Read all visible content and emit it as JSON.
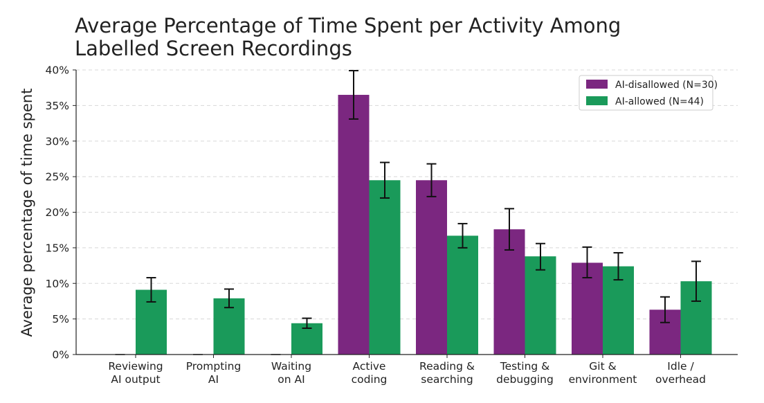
{
  "chart_data": {
    "type": "bar",
    "title": "Average Percentage of Time Spent per Activity Among Labelled Screen Recordings",
    "title_lines": [
      "Average Percentage of Time Spent per Activity Among",
      "Labelled Screen Recordings"
    ],
    "xlabel": "",
    "ylabel": "Average percentage of time spent",
    "categories": [
      [
        "Reviewing",
        "AI output"
      ],
      [
        "Prompting",
        "AI"
      ],
      [
        "Waiting",
        "on AI"
      ],
      [
        "Active",
        "coding"
      ],
      [
        "Reading &",
        "searching"
      ],
      [
        "Testing &",
        "debugging"
      ],
      [
        "Git &",
        "environment"
      ],
      [
        "Idle /",
        "overhead"
      ]
    ],
    "series": [
      {
        "name": "AI-disallowed (N=30)",
        "color": "#7b2780",
        "values": [
          0,
          0,
          0,
          36.5,
          24.5,
          17.6,
          12.9,
          6.3
        ],
        "error_low": [
          0,
          0,
          0,
          33.1,
          22.2,
          14.7,
          10.8,
          4.5
        ],
        "error_high": [
          0,
          0,
          0,
          39.9,
          26.8,
          20.5,
          15.1,
          8.1
        ]
      },
      {
        "name": "AI-allowed (N=44)",
        "color": "#1a9a5a",
        "values": [
          9.1,
          7.9,
          4.4,
          24.5,
          16.7,
          13.8,
          12.4,
          10.3
        ],
        "error_low": [
          7.4,
          6.6,
          3.7,
          22.0,
          15.0,
          11.9,
          10.5,
          7.5
        ],
        "error_high": [
          10.8,
          9.2,
          5.1,
          27.0,
          18.4,
          15.6,
          14.3,
          13.1
        ]
      }
    ],
    "ylim": [
      0,
      40
    ],
    "yticks": [
      "0%",
      "5%",
      "10%",
      "15%",
      "20%",
      "25%",
      "30%",
      "35%",
      "40%"
    ],
    "ytick_values": [
      0,
      5,
      10,
      15,
      20,
      25,
      30,
      35,
      40
    ],
    "grid": "horizontal dashed",
    "legend": "top-right"
  }
}
